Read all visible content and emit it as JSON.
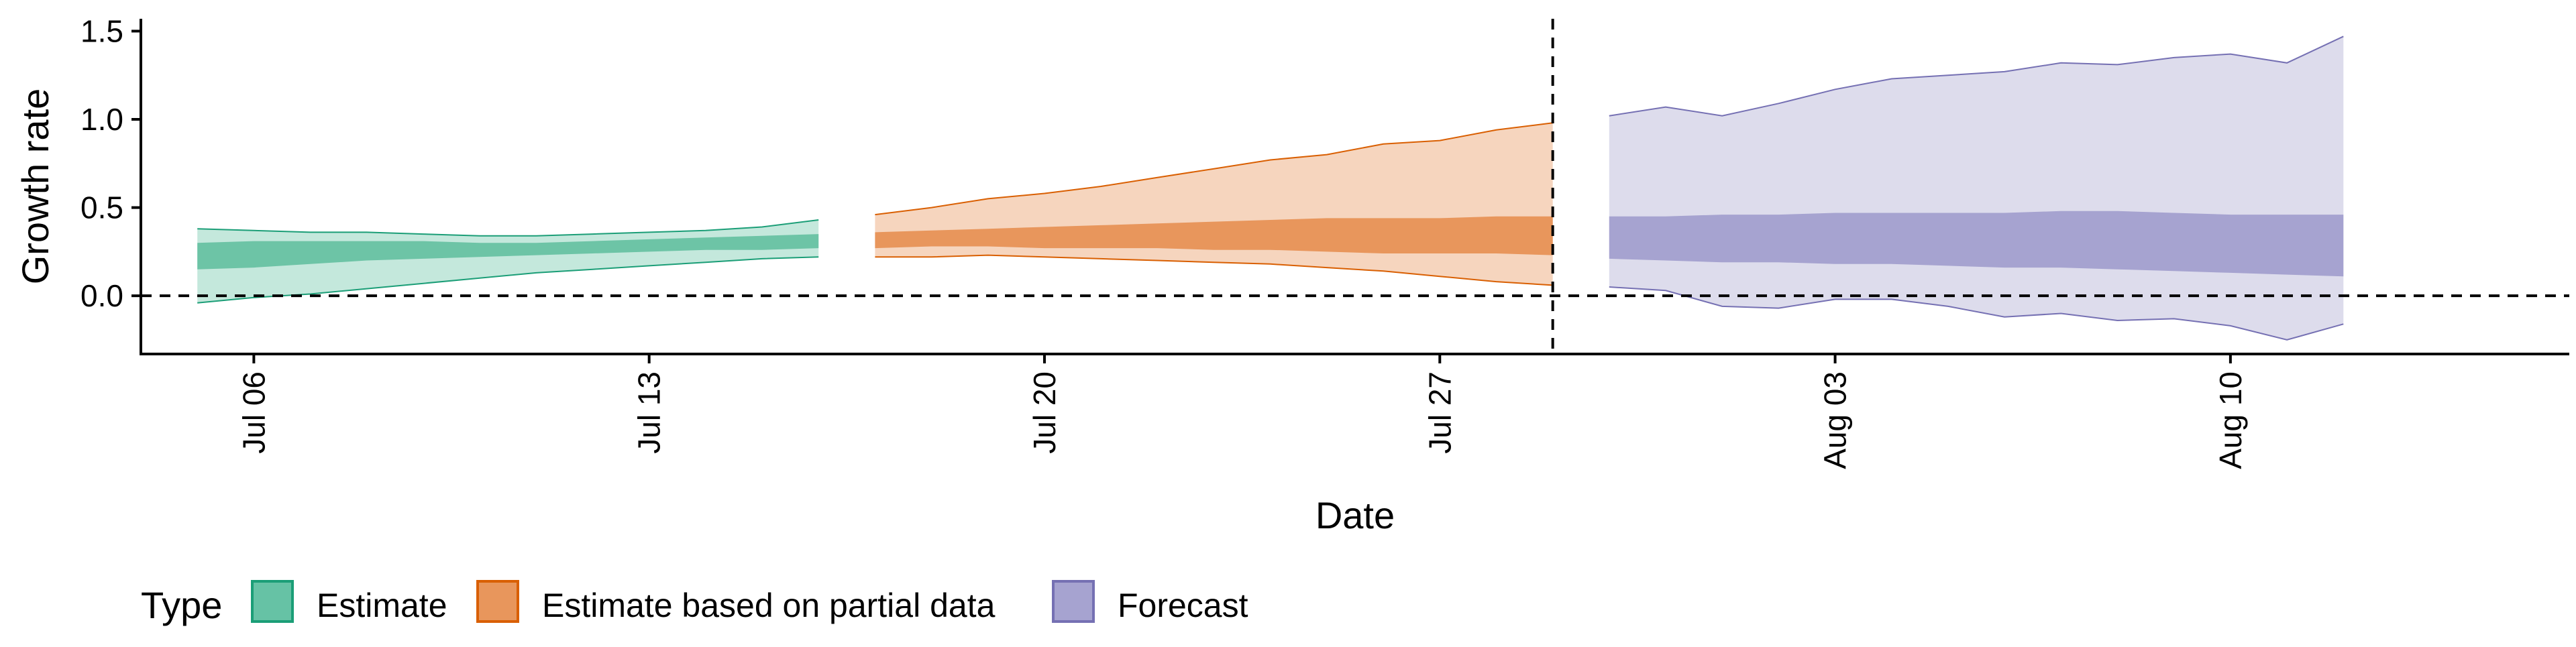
{
  "chart_data": {
    "type": "area",
    "title": "",
    "xlabel": "Date",
    "ylabel": "Growth rate",
    "x_axis_type": "date",
    "xlim": [
      "2020-07-04",
      "2020-08-16"
    ],
    "ylim": [
      -0.33,
      1.57
    ],
    "x_ticks": [
      {
        "date": "2020-07-06",
        "label": "Jul 06"
      },
      {
        "date": "2020-07-13",
        "label": "Jul 13"
      },
      {
        "date": "2020-07-20",
        "label": "Jul 20"
      },
      {
        "date": "2020-07-27",
        "label": "Jul 27"
      },
      {
        "date": "2020-08-03",
        "label": "Aug 03"
      },
      {
        "date": "2020-08-10",
        "label": "Aug 10"
      }
    ],
    "y_ticks": [
      {
        "value": 0.0,
        "label": "0.0"
      },
      {
        "value": 0.5,
        "label": "0.5"
      },
      {
        "value": 1.0,
        "label": "1.0"
      },
      {
        "value": 1.5,
        "label": "1.5"
      }
    ],
    "reference_lines": {
      "horizontal_y": 0.0,
      "vertical_x": "2020-07-29"
    },
    "grid": false,
    "legend": {
      "title": "Type",
      "position": "bottom-left",
      "entries": [
        {
          "label": "Estimate",
          "fill": "#66c2a5",
          "stroke": "#1b9e77"
        },
        {
          "label": "Estimate based on partial data",
          "fill": "#e8965c",
          "stroke": "#d95f02"
        },
        {
          "label": "Forecast",
          "fill": "#a6a3d0",
          "stroke": "#7570b3"
        }
      ]
    },
    "series": [
      {
        "name": "Estimate",
        "outer_fill": "#c4e8dc",
        "inner_fill": "#6dc4a6",
        "outer_stroke": "#1b9e77",
        "x": [
          "2020-07-05",
          "2020-07-06",
          "2020-07-07",
          "2020-07-08",
          "2020-07-09",
          "2020-07-10",
          "2020-07-11",
          "2020-07-12",
          "2020-07-13",
          "2020-07-14",
          "2020-07-15",
          "2020-07-16"
        ],
        "lower90": [
          -0.04,
          -0.01,
          0.01,
          0.04,
          0.07,
          0.1,
          0.13,
          0.15,
          0.17,
          0.19,
          0.21,
          0.22
        ],
        "upper90": [
          0.38,
          0.37,
          0.36,
          0.36,
          0.35,
          0.34,
          0.34,
          0.35,
          0.36,
          0.37,
          0.39,
          0.43
        ],
        "lower50": [
          0.15,
          0.16,
          0.18,
          0.2,
          0.21,
          0.22,
          0.23,
          0.24,
          0.25,
          0.26,
          0.26,
          0.27
        ],
        "upper50": [
          0.3,
          0.31,
          0.31,
          0.31,
          0.31,
          0.3,
          0.3,
          0.31,
          0.32,
          0.33,
          0.34,
          0.35
        ]
      },
      {
        "name": "Estimate based on partial data",
        "outer_fill": "#f6d5be",
        "inner_fill": "#e8965c",
        "outer_stroke": "#d95f02",
        "x": [
          "2020-07-17",
          "2020-07-18",
          "2020-07-19",
          "2020-07-20",
          "2020-07-21",
          "2020-07-22",
          "2020-07-23",
          "2020-07-24",
          "2020-07-25",
          "2020-07-26",
          "2020-07-27",
          "2020-07-28",
          "2020-07-29"
        ],
        "lower90": [
          0.22,
          0.22,
          0.23,
          0.22,
          0.21,
          0.2,
          0.19,
          0.18,
          0.16,
          0.14,
          0.11,
          0.08,
          0.06
        ],
        "upper90": [
          0.46,
          0.5,
          0.55,
          0.58,
          0.62,
          0.67,
          0.72,
          0.77,
          0.8,
          0.86,
          0.88,
          0.94,
          0.98
        ],
        "lower50": [
          0.27,
          0.28,
          0.28,
          0.27,
          0.27,
          0.27,
          0.26,
          0.26,
          0.25,
          0.24,
          0.24,
          0.24,
          0.23
        ],
        "upper50": [
          0.36,
          0.37,
          0.38,
          0.39,
          0.4,
          0.41,
          0.42,
          0.43,
          0.44,
          0.44,
          0.44,
          0.45,
          0.45
        ]
      },
      {
        "name": "Forecast",
        "outer_fill": "#dddcec",
        "inner_fill": "#a6a3d0",
        "outer_stroke": "#7570b3",
        "x": [
          "2020-07-30",
          "2020-07-31",
          "2020-08-01",
          "2020-08-02",
          "2020-08-03",
          "2020-08-04",
          "2020-08-05",
          "2020-08-06",
          "2020-08-07",
          "2020-08-08",
          "2020-08-09",
          "2020-08-10",
          "2020-08-11",
          "2020-08-12"
        ],
        "lower90": [
          0.05,
          0.03,
          -0.06,
          -0.07,
          -0.02,
          -0.02,
          -0.06,
          -0.12,
          -0.1,
          -0.14,
          -0.13,
          -0.17,
          -0.25,
          -0.16
        ],
        "upper90": [
          1.02,
          1.07,
          1.02,
          1.09,
          1.17,
          1.23,
          1.25,
          1.27,
          1.32,
          1.31,
          1.35,
          1.37,
          1.32,
          1.47
        ],
        "lower50": [
          0.21,
          0.2,
          0.19,
          0.19,
          0.18,
          0.18,
          0.17,
          0.16,
          0.16,
          0.15,
          0.14,
          0.13,
          0.12,
          0.11
        ],
        "upper50": [
          0.45,
          0.45,
          0.46,
          0.46,
          0.47,
          0.47,
          0.47,
          0.47,
          0.48,
          0.48,
          0.47,
          0.46,
          0.46,
          0.46
        ]
      }
    ]
  }
}
